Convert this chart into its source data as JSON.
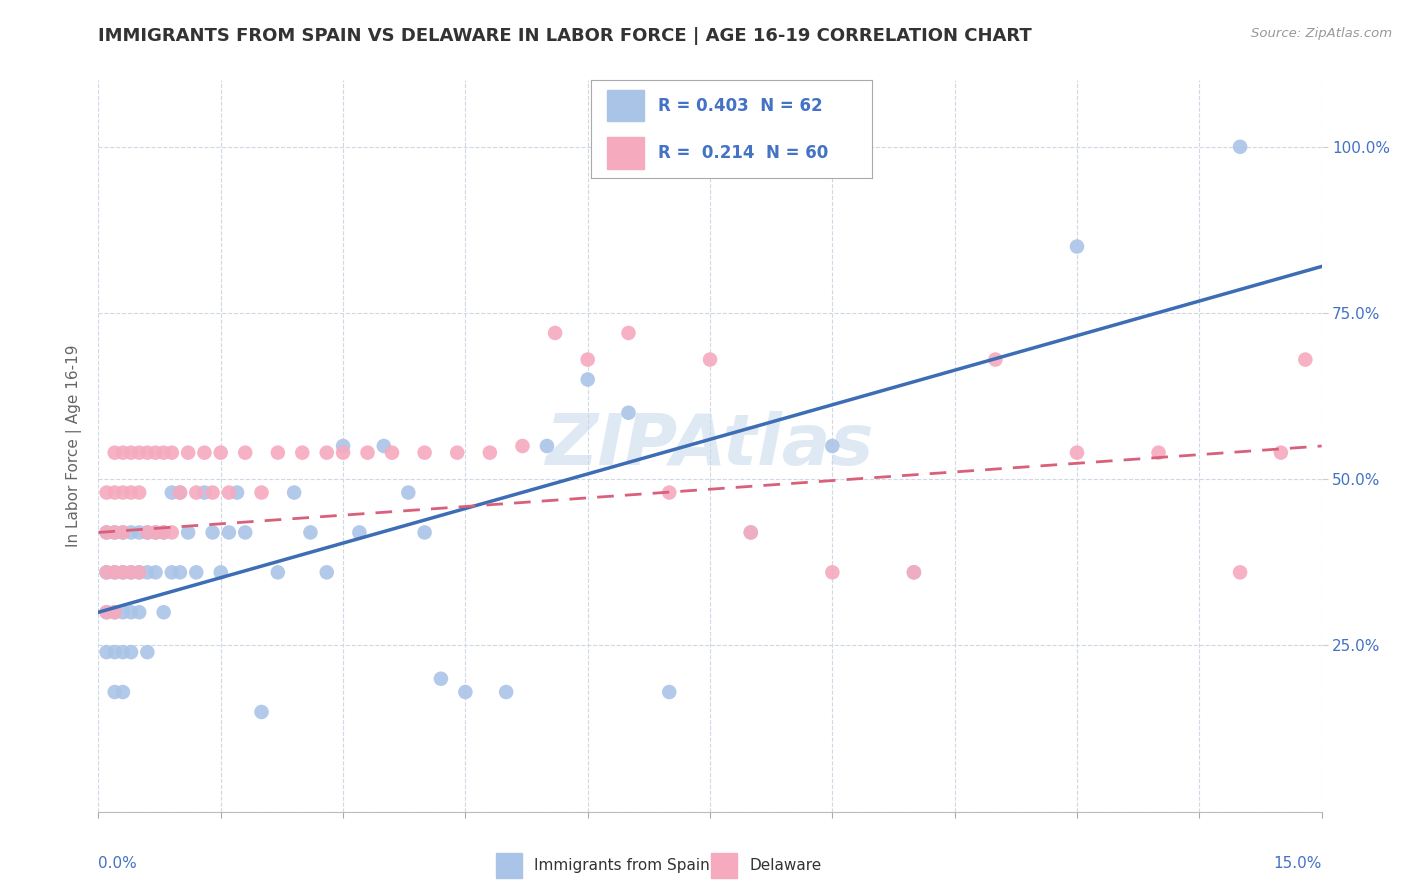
{
  "title": "IMMIGRANTS FROM SPAIN VS DELAWARE IN LABOR FORCE | AGE 16-19 CORRELATION CHART",
  "source": "Source: ZipAtlas.com",
  "series1_label": "Immigrants from Spain",
  "series2_label": "Delaware",
  "series1_color": "#aac4e8",
  "series2_color": "#f5aabe",
  "series1_line_color": "#3c6db5",
  "series2_line_color": "#d9607a",
  "watermark": "ZIPAtlas",
  "ylabel_label": "In Labor Force | Age 16-19",
  "xlim": [
    0.0,
    0.15
  ],
  "ylim": [
    0.0,
    1.1
  ],
  "legend1_text": "R = 0.403  N = 62",
  "legend2_text": "R =  0.214  N = 60",
  "series1_x": [
    0.001,
    0.001,
    0.001,
    0.001,
    0.002,
    0.002,
    0.002,
    0.002,
    0.002,
    0.003,
    0.003,
    0.003,
    0.003,
    0.003,
    0.004,
    0.004,
    0.004,
    0.004,
    0.005,
    0.005,
    0.005,
    0.006,
    0.006,
    0.006,
    0.007,
    0.007,
    0.008,
    0.008,
    0.009,
    0.009,
    0.01,
    0.01,
    0.011,
    0.012,
    0.013,
    0.014,
    0.015,
    0.016,
    0.017,
    0.018,
    0.02,
    0.022,
    0.024,
    0.026,
    0.028,
    0.03,
    0.032,
    0.035,
    0.038,
    0.04,
    0.042,
    0.045,
    0.05,
    0.055,
    0.06,
    0.065,
    0.07,
    0.08,
    0.09,
    0.1,
    0.12,
    0.14
  ],
  "series1_y": [
    0.42,
    0.36,
    0.3,
    0.24,
    0.42,
    0.36,
    0.3,
    0.24,
    0.18,
    0.42,
    0.36,
    0.3,
    0.24,
    0.18,
    0.42,
    0.36,
    0.3,
    0.24,
    0.42,
    0.36,
    0.3,
    0.42,
    0.36,
    0.24,
    0.42,
    0.36,
    0.42,
    0.3,
    0.48,
    0.36,
    0.48,
    0.36,
    0.42,
    0.36,
    0.48,
    0.42,
    0.36,
    0.42,
    0.48,
    0.42,
    0.15,
    0.36,
    0.48,
    0.42,
    0.36,
    0.55,
    0.42,
    0.55,
    0.48,
    0.42,
    0.2,
    0.18,
    0.18,
    0.55,
    0.65,
    0.6,
    0.18,
    0.42,
    0.55,
    0.36,
    0.85,
    1.0
  ],
  "series2_x": [
    0.001,
    0.001,
    0.001,
    0.001,
    0.002,
    0.002,
    0.002,
    0.002,
    0.002,
    0.003,
    0.003,
    0.003,
    0.003,
    0.004,
    0.004,
    0.004,
    0.005,
    0.005,
    0.005,
    0.006,
    0.006,
    0.007,
    0.007,
    0.008,
    0.008,
    0.009,
    0.009,
    0.01,
    0.011,
    0.012,
    0.013,
    0.014,
    0.015,
    0.016,
    0.018,
    0.02,
    0.022,
    0.025,
    0.028,
    0.03,
    0.033,
    0.036,
    0.04,
    0.044,
    0.048,
    0.052,
    0.056,
    0.06,
    0.065,
    0.07,
    0.075,
    0.08,
    0.09,
    0.1,
    0.11,
    0.12,
    0.13,
    0.14,
    0.145,
    0.148
  ],
  "series2_y": [
    0.48,
    0.42,
    0.36,
    0.3,
    0.54,
    0.48,
    0.42,
    0.36,
    0.3,
    0.54,
    0.48,
    0.42,
    0.36,
    0.54,
    0.48,
    0.36,
    0.54,
    0.48,
    0.36,
    0.54,
    0.42,
    0.54,
    0.42,
    0.54,
    0.42,
    0.54,
    0.42,
    0.48,
    0.54,
    0.48,
    0.54,
    0.48,
    0.54,
    0.48,
    0.54,
    0.48,
    0.54,
    0.54,
    0.54,
    0.54,
    0.54,
    0.54,
    0.54,
    0.54,
    0.54,
    0.55,
    0.72,
    0.68,
    0.72,
    0.48,
    0.68,
    0.42,
    0.36,
    0.36,
    0.68,
    0.54,
    0.54,
    0.36,
    0.54,
    0.68
  ]
}
